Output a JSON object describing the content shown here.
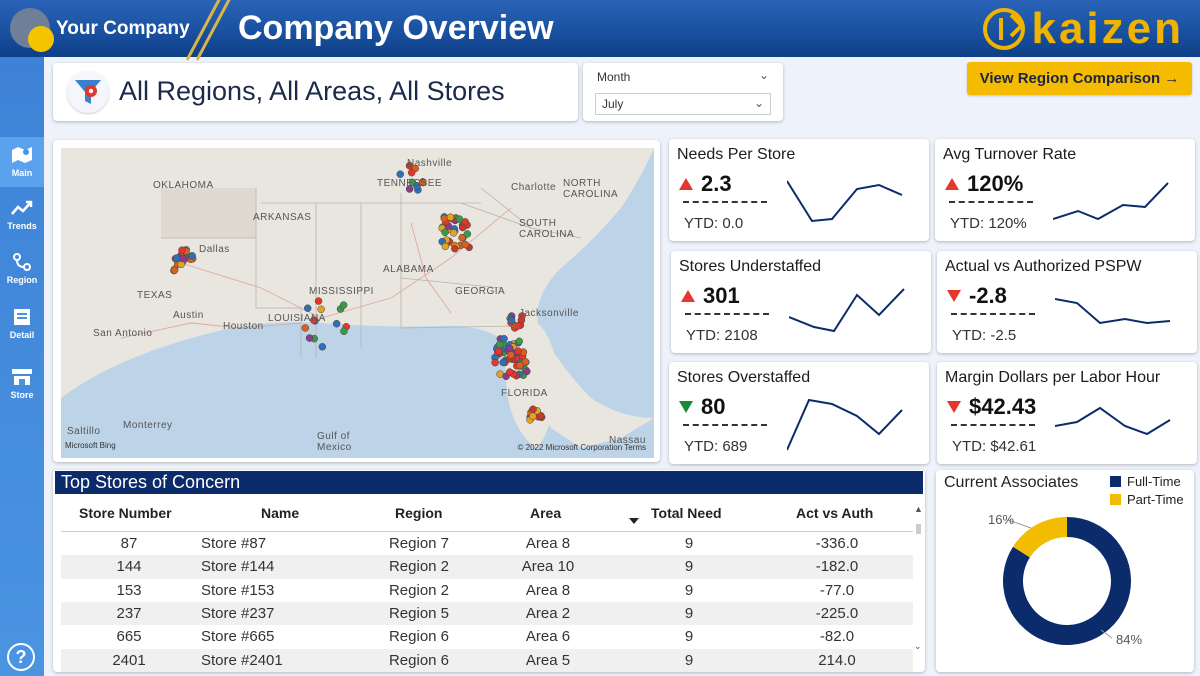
{
  "header": {
    "company_name": "Your Company",
    "title": "Company Overview",
    "brand": "kaizen"
  },
  "sidebar": {
    "items": [
      {
        "label": "Main",
        "icon": "map-icon"
      },
      {
        "label": "Trends",
        "icon": "trend-icon"
      },
      {
        "label": "Region",
        "icon": "region-icon"
      },
      {
        "label": "Detail",
        "icon": "detail-icon"
      },
      {
        "label": "Store",
        "icon": "store-icon"
      }
    ],
    "help": "?"
  },
  "filter": {
    "title": "All Regions, All Areas, All Stores"
  },
  "month": {
    "label": "Month",
    "selected": "July"
  },
  "region_button": "View Region Comparison →",
  "map": {
    "labels": [
      "OKLAHOMA",
      "ARKANSAS",
      "TEXAS",
      "Austin",
      "San Antonio",
      "Houston",
      "LOUISIANA",
      "MISSISSIPPI",
      "ALABAMA",
      "GEORGIA",
      "TENNESSEE",
      "Nashville",
      "Charlotte",
      "NORTH CAROLINA",
      "SOUTH CAROLINA",
      "Jacksonville",
      "FLORIDA",
      "Gulf of Mexico",
      "Saltillo",
      "Monterrey",
      "Nassau",
      "Dallas"
    ],
    "attribution": "© 2022 Microsoft Corporation  Terms",
    "bing": "Microsoft Bing"
  },
  "kpis": [
    {
      "title": "Needs Per Store",
      "value": "2.3",
      "trend": "up",
      "ytd": "YTD:  0.0"
    },
    {
      "title": "Avg Turnover Rate",
      "value": "120%",
      "trend": "up",
      "ytd": "YTD: 120%"
    },
    {
      "title": "Stores Understaffed",
      "value": "301",
      "trend": "up",
      "ytd": "YTD: 2108"
    },
    {
      "title": "Actual vs Authorized PSPW",
      "value": "-2.8",
      "trend": "down-red",
      "ytd": "YTD:  -2.5"
    },
    {
      "title": "Stores Overstaffed",
      "value": "80",
      "trend": "down-green",
      "ytd": "YTD: 689"
    },
    {
      "title": "Margin Dollars per Labor Hour",
      "value": "$42.43",
      "trend": "down-red",
      "ytd": "YTD: $42.61"
    }
  ],
  "table": {
    "title": "Top Stores of Concern",
    "columns": [
      "Store Number",
      "Name",
      "Region",
      "Area",
      "Total Need",
      "Act vs Auth"
    ],
    "rows": [
      [
        "87",
        "Store #87",
        "Region 7",
        "Area 8",
        "9",
        "-336.0"
      ],
      [
        "144",
        "Store #144",
        "Region 2",
        "Area 10",
        "9",
        "-182.0"
      ],
      [
        "153",
        "Store #153",
        "Region 2",
        "Area 8",
        "9",
        "-77.0"
      ],
      [
        "237",
        "Store #237",
        "Region 5",
        "Area 2",
        "9",
        "-225.0"
      ],
      [
        "665",
        "Store #665",
        "Region 6",
        "Area 6",
        "9",
        "-82.0"
      ],
      [
        "2401",
        "Store #2401",
        "Region 6",
        "Area 5",
        "9",
        "214.0"
      ]
    ]
  },
  "associates": {
    "title": "Current Associates",
    "legend": [
      {
        "name": "Full-Time",
        "color": "#0c2b6b"
      },
      {
        "name": "Part-Time",
        "color": "#f2bc00"
      }
    ],
    "full_time_pct_label": "84%",
    "part_time_pct_label": "16%"
  },
  "chart_data": {
    "type": "pie",
    "categories": [
      "Full-Time",
      "Part-Time"
    ],
    "values": [
      84,
      16
    ],
    "title": "Current Associates"
  },
  "colors": {
    "accent": "#f5bb00",
    "navy": "#0c2b6b",
    "up_red": "#e4362a",
    "down_green": "#1a8a3a"
  }
}
